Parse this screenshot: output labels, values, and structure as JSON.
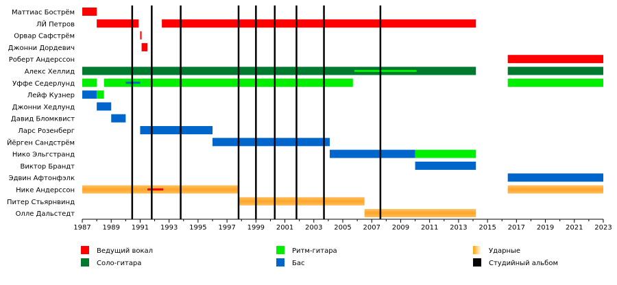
{
  "chart_data": {
    "type": "timeline",
    "x_range": [
      1987,
      2023
    ],
    "x_ticks": [
      1987,
      1989,
      1991,
      1993,
      1995,
      1997,
      1999,
      2001,
      2003,
      2005,
      2007,
      2009,
      2011,
      2013,
      2015,
      2017,
      2019,
      2021,
      2023
    ],
    "roles": {
      "vocal": {
        "label": "Ведущий вокал",
        "color": "#ff0000"
      },
      "lead": {
        "label": "Соло-гитара",
        "color": "#007a2e"
      },
      "rhythm": {
        "label": "Ритм-гитара",
        "color": "#00ee00"
      },
      "bass": {
        "label": "Бас",
        "color": "#0066cc"
      },
      "drums": {
        "label": "Ударные",
        "color": "#ffa500"
      },
      "album": {
        "label": "Студийный альбом",
        "color": "#000000"
      }
    },
    "members": [
      {
        "name": "Маттиас Бострём",
        "bars": [
          {
            "role": "vocal",
            "start": 1987.0,
            "end": 1988.0
          }
        ]
      },
      {
        "name": "ЛЙ Петров",
        "bars": [
          {
            "role": "vocal",
            "start": 1988.0,
            "end": 1990.9
          },
          {
            "role": "vocal",
            "start": 1992.5,
            "end": 2014.2
          }
        ]
      },
      {
        "name": "Орвар Сафстрём",
        "bars": [
          {
            "role": "vocal",
            "start": 1991.0,
            "end": 1991.1
          }
        ]
      },
      {
        "name": "Джонни Дордевич",
        "bars": [
          {
            "role": "vocal",
            "start": 1991.1,
            "end": 1991.5
          }
        ]
      },
      {
        "name": "Роберт Андерссон",
        "bars": [
          {
            "role": "vocal",
            "start": 2016.4,
            "end": 2023.0
          }
        ]
      },
      {
        "name": "Алекс Хеллид",
        "bars": [
          {
            "role": "lead",
            "start": 1987.0,
            "end": 2014.2
          },
          {
            "role": "lead",
            "start": 2016.4,
            "end": 2023.0
          }
        ],
        "inner": [
          {
            "role": "rhythm",
            "start": 2005.8,
            "end": 2010.1
          }
        ]
      },
      {
        "name": "Уффе Седерлунд",
        "bars": [
          {
            "role": "rhythm",
            "start": 1987.0,
            "end": 1988.0
          },
          {
            "role": "rhythm",
            "start": 1988.5,
            "end": 2005.7
          },
          {
            "role": "rhythm",
            "start": 2016.4,
            "end": 2023.0
          }
        ],
        "inner": [
          {
            "role": "bass",
            "start": 1990.0,
            "end": 1991.0
          }
        ]
      },
      {
        "name": "Лейф Кузнер",
        "bars": [
          {
            "role": "bass",
            "start": 1987.0,
            "end": 1988.0
          },
          {
            "role": "rhythm",
            "start": 1988.0,
            "end": 1988.5
          }
        ]
      },
      {
        "name": "Джонни Хедлунд",
        "bars": [
          {
            "role": "bass",
            "start": 1988.0,
            "end": 1989.0
          }
        ]
      },
      {
        "name": "Давид Бломквист",
        "bars": [
          {
            "role": "bass",
            "start": 1989.0,
            "end": 1990.0
          }
        ]
      },
      {
        "name": "Ларс Розенберг",
        "bars": [
          {
            "role": "bass",
            "start": 1991.0,
            "end": 1996.0
          }
        ]
      },
      {
        "name": "Йёрген Сандстрём",
        "bars": [
          {
            "role": "bass",
            "start": 1996.0,
            "end": 2004.1
          }
        ]
      },
      {
        "name": "Нико Эльгстранд",
        "bars": [
          {
            "role": "bass",
            "start": 2004.1,
            "end": 2010.0
          },
          {
            "role": "rhythm",
            "start": 2010.0,
            "end": 2014.2
          }
        ]
      },
      {
        "name": "Виктор Брандт",
        "bars": [
          {
            "role": "bass",
            "start": 2010.0,
            "end": 2014.2
          }
        ]
      },
      {
        "name": "Эдвин Афтонфэлк",
        "bars": [
          {
            "role": "bass",
            "start": 2016.4,
            "end": 2023.0
          }
        ]
      },
      {
        "name": "Нике Андерссон",
        "bars": [
          {
            "role": "drums",
            "start": 1987.0,
            "end": 1997.8
          },
          {
            "role": "drums",
            "start": 2016.4,
            "end": 2023.0
          }
        ],
        "inner": [
          {
            "role": "vocal",
            "start": 1991.5,
            "end": 1992.6
          }
        ]
      },
      {
        "name": "Питер Стьярнвинд",
        "bars": [
          {
            "role": "drums",
            "start": 1997.8,
            "end": 2006.5
          }
        ]
      },
      {
        "name": "Олле Дальстедт",
        "bars": [
          {
            "role": "drums",
            "start": 2006.5,
            "end": 2014.2
          }
        ]
      }
    ],
    "albums": [
      1990.45,
      1991.8,
      1993.8,
      1997.8,
      1999.0,
      2000.3,
      2001.8,
      2003.7,
      2007.6
    ],
    "legend": [
      [
        "vocal",
        "rhythm",
        "drums"
      ],
      [
        "lead",
        "bass",
        "album"
      ]
    ]
  }
}
